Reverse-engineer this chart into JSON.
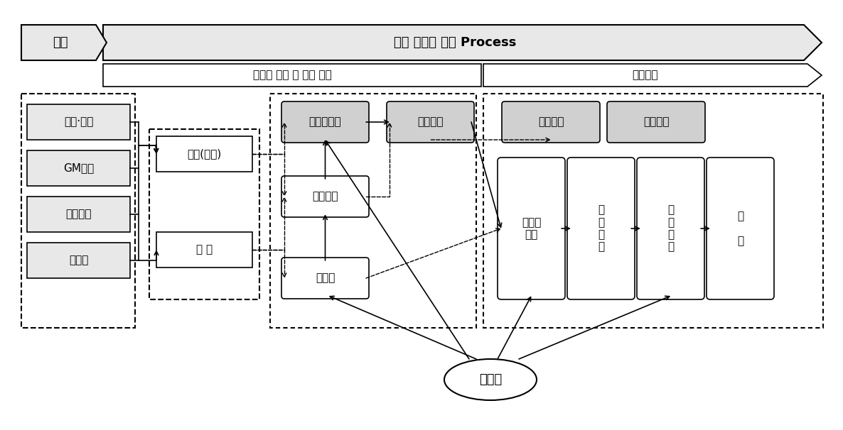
{
  "title": "국내 중고차 수출 Process",
  "subtitle_left": "중고차 유통 및 차량 매집",
  "subtitle_right": "수출절차",
  "left_label": "신차",
  "left_items": [
    "현대·기아",
    "GM대우",
    "르노삼성",
    "수입차"
  ],
  "mid_items": [
    "회사(법인)",
    "개 인"
  ],
  "proc_items": [
    "중간매매상",
    "경매회사",
    "폐차장"
  ],
  "export_mid": "수출회사",
  "right_top": [
    "수출회사",
    "물류회사"
  ],
  "right_bot": [
    "점검및\n수리",
    "수\n출\n검\n수",
    "수\n출\n통\n관",
    "선\n\n적"
  ],
  "buyer": "바이어",
  "gray_fill": "#d0d0d0",
  "light_fill": "#e8e8e8",
  "white_fill": "#ffffff",
  "bg": "#ffffff"
}
